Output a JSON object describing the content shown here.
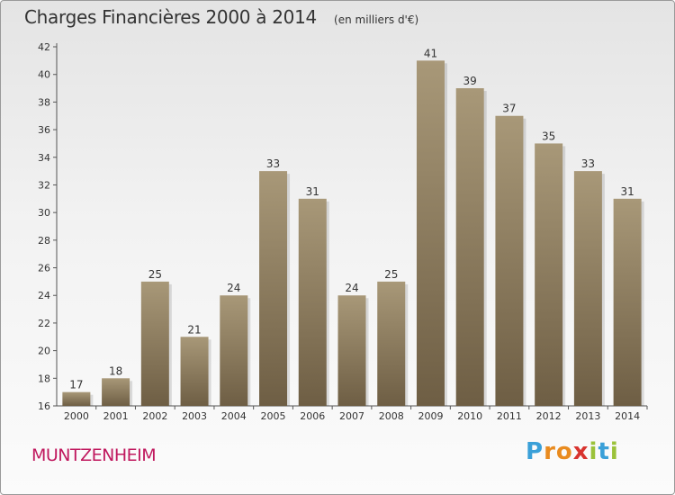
{
  "header": {
    "title": "Charges Financières 2000 à 2014",
    "subtitle": "(en milliers d'€)"
  },
  "footer": {
    "commune": "MUNTZENHEIM",
    "logo_text": "Proxiti"
  },
  "colors": {
    "bar_top": "#a89878",
    "bar_bottom": "#6e5e44",
    "commune": "#c0185e",
    "text": "#333333"
  },
  "chart_data": {
    "type": "bar",
    "title": "Charges Financières 2000 à 2014",
    "subtitle": "(en milliers d'€)",
    "xlabel": "",
    "ylabel": "",
    "categories": [
      "2000",
      "2001",
      "2002",
      "2003",
      "2004",
      "2005",
      "2006",
      "2007",
      "2008",
      "2009",
      "2010",
      "2011",
      "2012",
      "2013",
      "2014"
    ],
    "values": [
      17,
      18,
      25,
      21,
      24,
      33,
      31,
      24,
      25,
      41,
      39,
      37,
      35,
      33,
      31
    ],
    "ylim": [
      16,
      42
    ],
    "yticks": [
      16,
      18,
      20,
      22,
      24,
      26,
      28,
      30,
      32,
      34,
      36,
      38,
      40,
      42
    ],
    "grid": false,
    "legend": "none"
  }
}
